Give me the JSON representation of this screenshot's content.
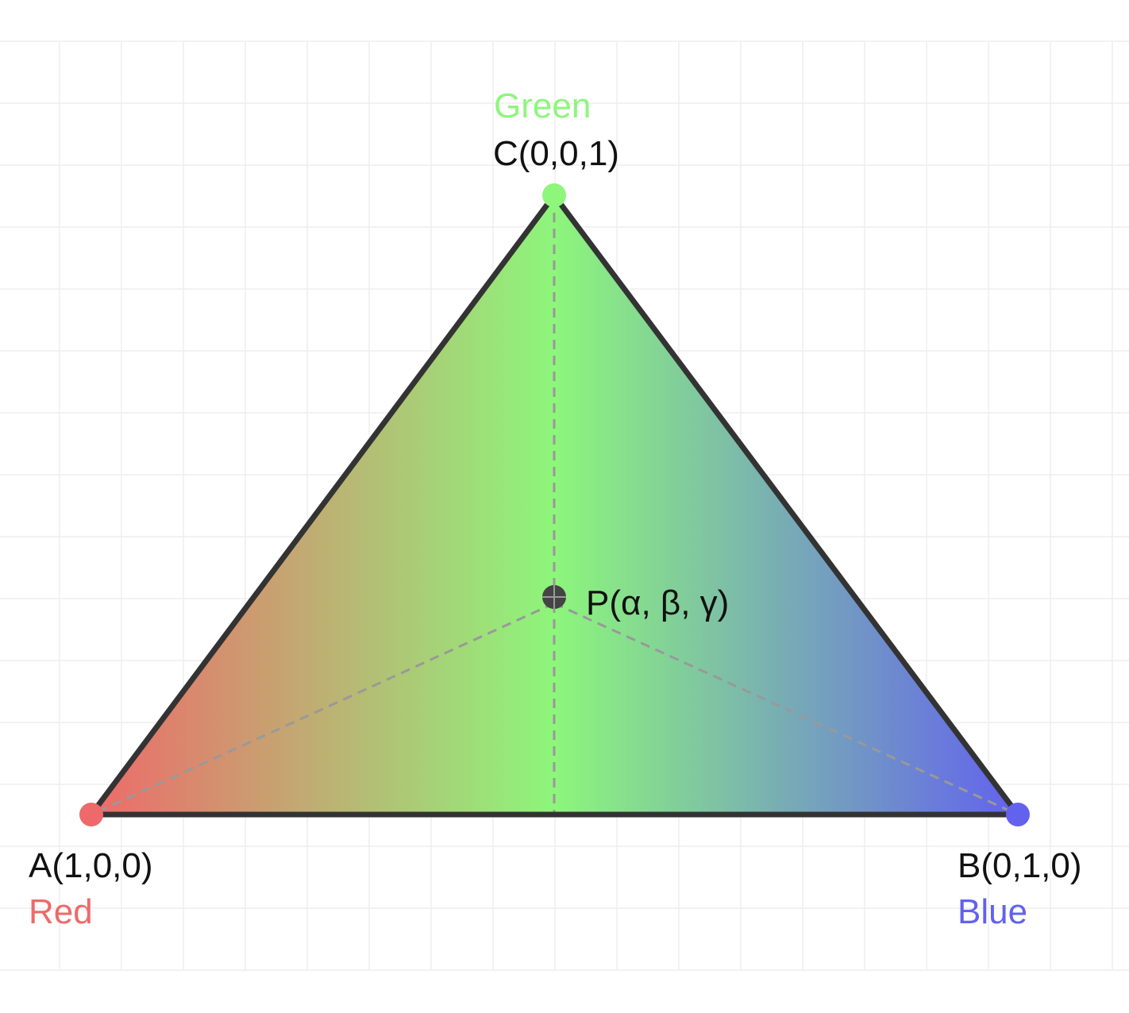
{
  "colors": {
    "red": "#ee6a6a",
    "green": "#8df67b",
    "blue": "#6262ee",
    "edge": "#333333",
    "dash": "#999999",
    "grid": "#eeeeee",
    "label": "#111111",
    "point": "#444444"
  },
  "vertices": {
    "a": {
      "label": "A(1,0,0)",
      "color_name": "Red"
    },
    "b": {
      "label": "B(0,1,0)",
      "color_name": "Blue"
    },
    "c": {
      "label": "C(0,0,1)",
      "color_name": "Green"
    }
  },
  "point_p": {
    "label": "P(α, β, γ)"
  }
}
